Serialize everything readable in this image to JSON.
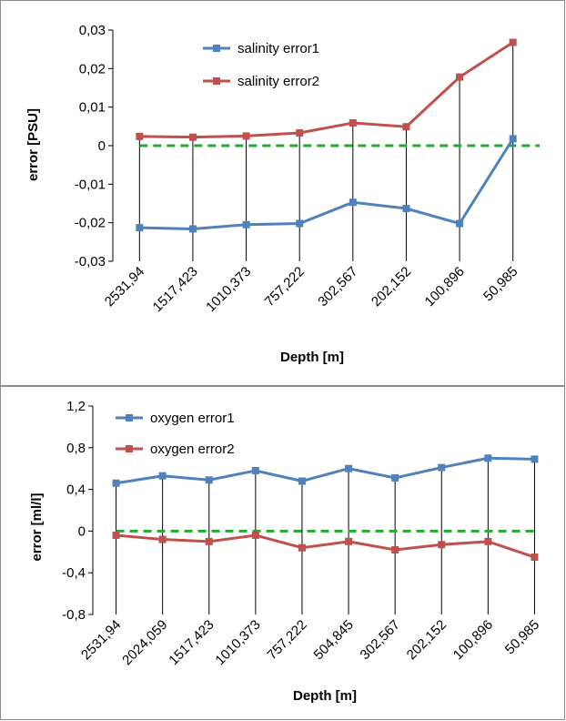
{
  "chart_data": [
    {
      "type": "line",
      "title": "",
      "xlabel": "Depth [m]",
      "ylabel": "error [PSU]",
      "categories": [
        "2531,94",
        "1517,423",
        "1010,373",
        "757,222",
        "302,567",
        "202,152",
        "100,896",
        "50,985"
      ],
      "ylim": [
        -0.03,
        0.03
      ],
      "yticks": [
        -0.03,
        -0.02,
        -0.01,
        0,
        0.01,
        0.02,
        0.03
      ],
      "ytick_labels": [
        "-0,03",
        "-0,02",
        "-0,01",
        "0",
        "0,01",
        "0,02",
        "0,03"
      ],
      "zero_line": {
        "value": 0,
        "color": "#22aa33",
        "style": "dashed"
      },
      "drop_lines": true,
      "legend_position": "top-left-center",
      "series": [
        {
          "name": "salinity error1",
          "color": "#4f81bd",
          "values": [
            -0.0213,
            -0.0216,
            -0.0205,
            -0.0202,
            -0.0147,
            -0.0163,
            -0.0202,
            0.0018
          ]
        },
        {
          "name": "salinity error2",
          "color": "#c0504d",
          "values": [
            0.0024,
            0.0022,
            0.0025,
            0.0033,
            0.0059,
            0.0049,
            0.0178,
            0.0268
          ]
        }
      ]
    },
    {
      "type": "line",
      "title": "",
      "xlabel": "Depth [m]",
      "ylabel": "error [ml/l]",
      "categories": [
        "2531,94",
        "2024,059",
        "1517,423",
        "1010,373",
        "757,222",
        "504,845",
        "302,567",
        "202,152",
        "100,896",
        "50,985"
      ],
      "ylim": [
        -0.8,
        1.2
      ],
      "yticks": [
        -0.8,
        -0.4,
        0,
        0.4,
        0.8,
        1.2
      ],
      "ytick_labels": [
        "-0,8",
        "-0,4",
        "0",
        "0,4",
        "0,8",
        "1,2"
      ],
      "zero_line": {
        "value": 0,
        "color": "#22aa33",
        "style": "dashed"
      },
      "drop_lines": true,
      "legend_position": "top-left",
      "series": [
        {
          "name": "oxygen error1",
          "color": "#4f81bd",
          "values": [
            0.46,
            0.53,
            0.49,
            0.58,
            0.48,
            0.6,
            0.51,
            0.61,
            0.7,
            0.69
          ]
        },
        {
          "name": "oxygen error2",
          "color": "#c0504d",
          "values": [
            -0.04,
            -0.08,
            -0.1,
            -0.04,
            -0.16,
            -0.1,
            -0.18,
            -0.13,
            -0.1,
            -0.25
          ]
        }
      ]
    }
  ]
}
